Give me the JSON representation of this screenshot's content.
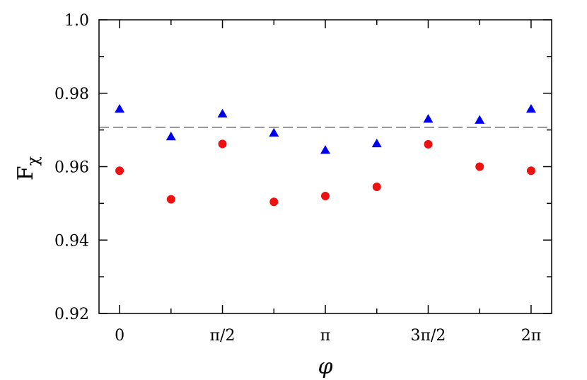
{
  "chart_data": {
    "type": "scatter",
    "xlabel": "φ",
    "ylabel": {
      "main": "F",
      "subscript": "χ"
    },
    "xlim": [
      -0.314,
      6.597
    ],
    "ylim": [
      0.92,
      1.0
    ],
    "x_ticks": [
      {
        "value": 0,
        "label": "0"
      },
      {
        "value": 1.5708,
        "label": "π/2"
      },
      {
        "value": 3.1416,
        "label": "π"
      },
      {
        "value": 4.7124,
        "label": "3π/2"
      },
      {
        "value": 6.2832,
        "label": "2π"
      }
    ],
    "x_minor_ticks": [
      0.7854,
      2.3562,
      3.927,
      5.4978
    ],
    "y_ticks": [
      {
        "value": 0.92,
        "label": "0.92"
      },
      {
        "value": 0.94,
        "label": "0.94"
      },
      {
        "value": 0.96,
        "label": "0.96"
      },
      {
        "value": 0.98,
        "label": "0.98"
      },
      {
        "value": 1.0,
        "label": "1.0"
      }
    ],
    "y_minor_ticks": [
      0.93,
      0.95,
      0.97,
      0.99
    ],
    "reference_line": {
      "y": 0.9707,
      "color": "#999999",
      "style": "dashed"
    },
    "series": [
      {
        "marker": "circle",
        "color": "#ee1111",
        "points": [
          [
            0,
            0.9589
          ],
          [
            0.7854,
            0.9511
          ],
          [
            1.5708,
            0.9662
          ],
          [
            2.3562,
            0.9504
          ],
          [
            3.1416,
            0.952
          ],
          [
            3.927,
            0.9545
          ],
          [
            4.7124,
            0.9661
          ],
          [
            5.4978,
            0.96
          ],
          [
            6.2832,
            0.9589
          ]
        ]
      },
      {
        "marker": "triangle",
        "color": "#0000ee",
        "points": [
          [
            0,
            0.9757
          ],
          [
            0.7854,
            0.9682
          ],
          [
            1.5708,
            0.9744
          ],
          [
            2.3562,
            0.9692
          ],
          [
            3.1416,
            0.9645
          ],
          [
            3.927,
            0.9663
          ],
          [
            4.7124,
            0.973
          ],
          [
            5.4978,
            0.9727
          ],
          [
            6.2832,
            0.9757
          ]
        ]
      }
    ],
    "grid": false
  }
}
